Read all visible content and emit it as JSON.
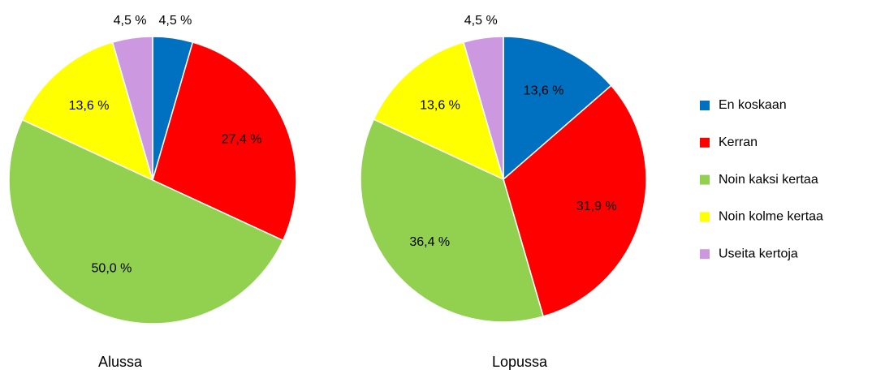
{
  "chart_data": [
    {
      "type": "pie",
      "title": "Alussa",
      "values": [
        4.5,
        27.4,
        50.0,
        13.6,
        4.5
      ],
      "value_labels": [
        "4,5 %",
        "27,4 %",
        "50,0 %",
        "13,6 %",
        "4,5 %"
      ]
    },
    {
      "type": "pie",
      "title": "Lopussa",
      "values": [
        13.6,
        31.9,
        36.4,
        13.6,
        4.5
      ],
      "value_labels": [
        "13,6 %",
        "31,9 %",
        "36,4 %",
        "13,6 %",
        "4,5 %"
      ]
    }
  ],
  "legend": {
    "labels": [
      "En koskaan",
      "Kerran",
      "Noin kaksi kertaa",
      "Noin kolme kertaa",
      "Useita kertoja"
    ],
    "colors": [
      "#0070c0",
      "#ff0000",
      "#92d050",
      "#ffff00",
      "#cc99e0"
    ]
  }
}
